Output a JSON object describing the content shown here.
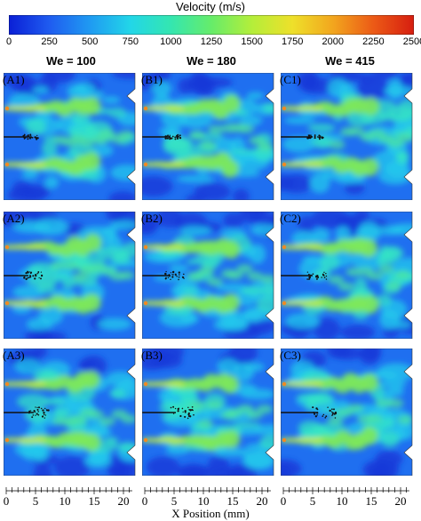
{
  "colorbar": {
    "title": "Velocity (m/s)",
    "ticks": [
      "0",
      "250",
      "500",
      "750",
      "1000",
      "1250",
      "1500",
      "1750",
      "2000",
      "2250",
      "2500"
    ],
    "colors": [
      "#0a1fd6",
      "#1f5cf0",
      "#1f9af2",
      "#22d6e8",
      "#34e6b0",
      "#66ec6a",
      "#b4ee3a",
      "#eee02a",
      "#f2a61e",
      "#ec5a16",
      "#d61e10"
    ]
  },
  "columns": [
    {
      "label": "We = 100"
    },
    {
      "label": "We = 180"
    },
    {
      "label": "We = 415"
    }
  ],
  "panels": [
    [
      "(A1)",
      "(B1)",
      "(C1)"
    ],
    [
      "(A2)",
      "(B2)",
      "(C2)"
    ],
    [
      "(A3)",
      "(B3)",
      "(C3)"
    ]
  ],
  "xaxis": {
    "label": "X Position (mm)",
    "ticks": [
      "0",
      "5",
      "10",
      "15",
      "20"
    ]
  }
}
